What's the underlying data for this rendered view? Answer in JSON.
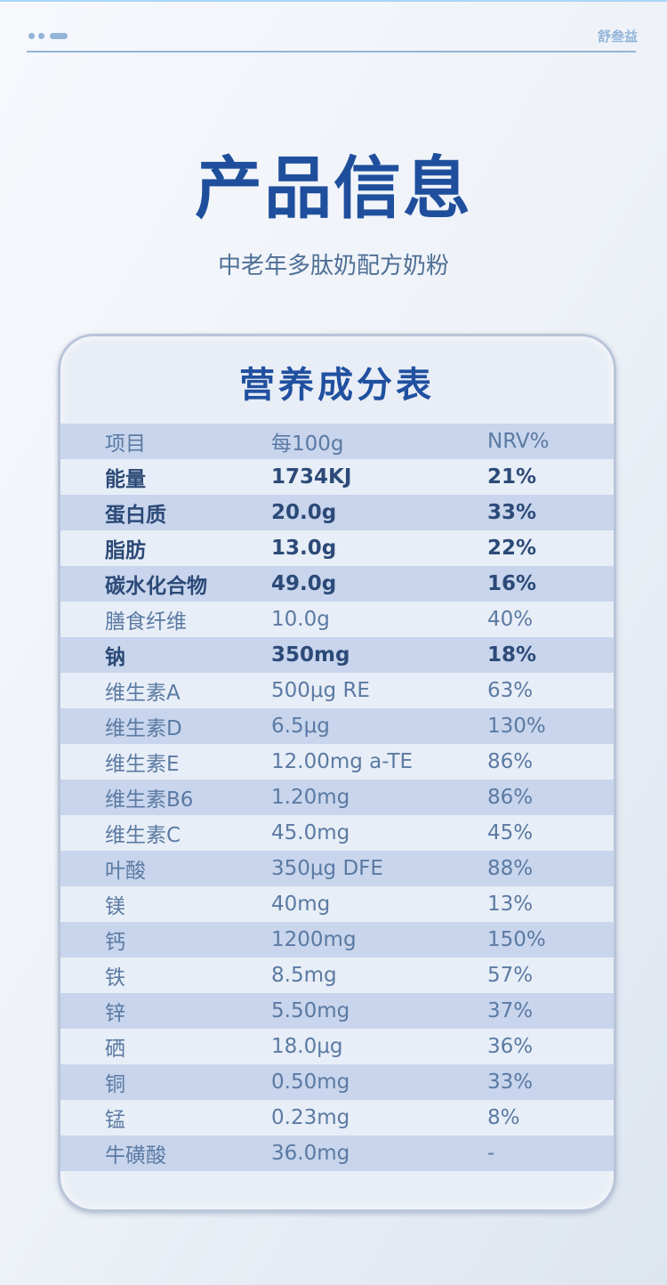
{
  "header": {
    "brand": "舒叁益"
  },
  "title": "产品信息",
  "subtitle": "中老年多肽奶配方奶粉",
  "card": {
    "title": "营养成分表"
  },
  "table": {
    "header": [
      "项目",
      "每100g",
      "NRV%"
    ],
    "rows": [
      {
        "name": "能量",
        "value": "1734KJ",
        "nrv": "21%",
        "bold": true
      },
      {
        "name": "蛋白质",
        "value": "20.0g",
        "nrv": "33%",
        "bold": true
      },
      {
        "name": "脂肪",
        "value": "13.0g",
        "nrv": "22%",
        "bold": true
      },
      {
        "name": "碳水化合物",
        "value": "49.0g",
        "nrv": "16%",
        "bold": true
      },
      {
        "name": "膳食纤维",
        "value": "10.0g",
        "nrv": "40%",
        "bold": false
      },
      {
        "name": "钠",
        "value": "350mg",
        "nrv": "18%",
        "bold": true
      },
      {
        "name": "维生素A",
        "value": "500μg RE",
        "nrv": "63%",
        "bold": false
      },
      {
        "name": "维生素D",
        "value": "6.5μg",
        "nrv": "130%",
        "bold": false
      },
      {
        "name": "维生素E",
        "value": "12.00mg a-TE",
        "nrv": "86%",
        "bold": false
      },
      {
        "name": "维生素B6",
        "value": "1.20mg",
        "nrv": "86%",
        "bold": false
      },
      {
        "name": "维生素C",
        "value": "45.0mg",
        "nrv": "45%",
        "bold": false
      },
      {
        "name": "叶酸",
        "value": "350μg DFE",
        "nrv": "88%",
        "bold": false
      },
      {
        "name": "镁",
        "value": "40mg",
        "nrv": "13%",
        "bold": false
      },
      {
        "name": "钙",
        "value": "1200mg",
        "nrv": "150%",
        "bold": false
      },
      {
        "name": "铁",
        "value": "8.5mg",
        "nrv": "57%",
        "bold": false
      },
      {
        "name": "锌",
        "value": "5.50mg",
        "nrv": "37%",
        "bold": false
      },
      {
        "name": "硒",
        "value": "18.0μg",
        "nrv": "36%",
        "bold": false
      },
      {
        "name": "铜",
        "value": "0.50mg",
        "nrv": "33%",
        "bold": false
      },
      {
        "name": "锰",
        "value": "0.23mg",
        "nrv": "8%",
        "bold": false
      },
      {
        "name": "牛磺酸",
        "value": "36.0mg",
        "nrv": "-",
        "bold": false
      }
    ]
  }
}
